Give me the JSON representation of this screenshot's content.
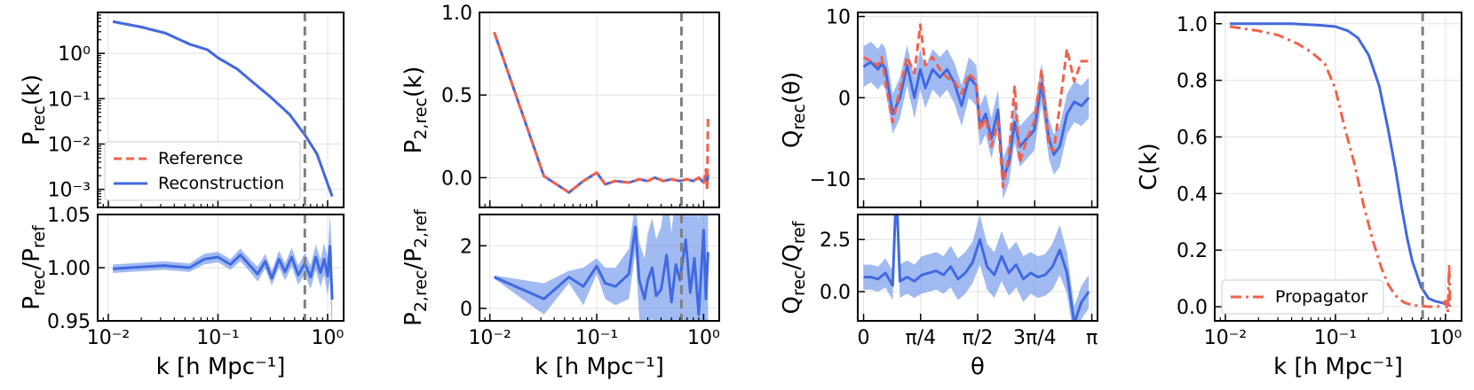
{
  "colors": {
    "reference": "#f0624b",
    "reconstruction": "#4169e1",
    "band": "#6e97eb",
    "vline": "#808080",
    "grid": "#e2e2e2"
  },
  "chart_data": [
    {
      "id": "p_main",
      "type": "line",
      "xscale": "log",
      "yscale": "log",
      "xlim": [
        0.008,
        1.4
      ],
      "ylim": [
        0.0004,
        8
      ],
      "xticks": [
        0.01,
        0.1,
        1
      ],
      "xtick_labels": [
        "",
        "",
        ""
      ],
      "yticks": [
        0.001,
        0.01,
        0.1,
        1
      ],
      "ytick_labels": [
        "10⁻³",
        "10⁻²",
        "10⁻¹",
        "10⁰"
      ],
      "ylabel": "P_rec(k)",
      "vline": 0.62,
      "grid": true,
      "legend": "lower-left",
      "series": [
        {
          "name": "Reference",
          "style": "dashed",
          "color": "reference",
          "x": [
            0.011,
            0.02,
            0.033,
            0.055,
            0.08,
            0.1,
            0.15,
            0.2,
            0.3,
            0.45,
            0.62,
            0.8,
            1.1
          ],
          "y": [
            5.0,
            3.8,
            2.8,
            1.6,
            1.2,
            0.8,
            0.45,
            0.25,
            0.11,
            0.045,
            0.016,
            0.006,
            0.0007
          ]
        },
        {
          "name": "Reconstruction",
          "style": "solid",
          "color": "reconstruction",
          "x": [
            0.011,
            0.02,
            0.033,
            0.055,
            0.08,
            0.1,
            0.15,
            0.2,
            0.3,
            0.45,
            0.62,
            0.8,
            1.1
          ],
          "y": [
            5.0,
            3.8,
            2.8,
            1.6,
            1.2,
            0.8,
            0.45,
            0.25,
            0.11,
            0.045,
            0.016,
            0.006,
            0.0007
          ]
        }
      ]
    },
    {
      "id": "p_ratio",
      "type": "line",
      "xscale": "log",
      "yscale": "linear",
      "xlim": [
        0.008,
        1.4
      ],
      "ylim": [
        0.95,
        1.05
      ],
      "xticks": [
        0.01,
        0.1,
        1
      ],
      "xtick_labels": [
        "10⁻²",
        "10⁻¹",
        "10⁰"
      ],
      "yticks": [
        0.95,
        1.0,
        1.05
      ],
      "ytick_labels": [
        "0.95",
        "1.00",
        "1.05"
      ],
      "ylabel": "P_rec/P_ref",
      "xlabel": "k [h Mpc⁻¹]",
      "vline": 0.62,
      "grid": true,
      "series": [
        {
          "name": "Reconstruction",
          "style": "band",
          "color": "reconstruction",
          "x": [
            0.011,
            0.032,
            0.055,
            0.075,
            0.1,
            0.13,
            0.16,
            0.2,
            0.23,
            0.27,
            0.31,
            0.36,
            0.41,
            0.47,
            0.54,
            0.62,
            0.7,
            0.78,
            0.86,
            0.93,
            1.0,
            1.05,
            1.1
          ],
          "y": [
            0.999,
            1.002,
            1.0,
            1.008,
            1.01,
            1.003,
            1.012,
            1.001,
            0.994,
            1.006,
            0.99,
            1.008,
            0.996,
            1.01,
            0.993,
            1.004,
            0.991,
            1.01,
            0.995,
            1.008,
            0.992,
            1.02,
            0.97
          ],
          "err": [
            0.004,
            0.004,
            0.004,
            0.005,
            0.005,
            0.005,
            0.006,
            0.006,
            0.007,
            0.007,
            0.007,
            0.008,
            0.008,
            0.009,
            0.009,
            0.01,
            0.011,
            0.012,
            0.013,
            0.015,
            0.018,
            0.03,
            0.04
          ]
        }
      ]
    },
    {
      "id": "p2_main",
      "type": "line",
      "xscale": "log",
      "yscale": "linear",
      "xlim": [
        0.008,
        1.4
      ],
      "ylim": [
        -0.18,
        1.0
      ],
      "xticks": [
        0.01,
        0.1,
        1
      ],
      "xtick_labels": [
        "",
        "",
        ""
      ],
      "yticks": [
        0.0,
        0.5,
        1.0
      ],
      "ytick_labels": [
        "0.0",
        "0.5",
        "1.0"
      ],
      "ylabel": "P_2,rec(k)",
      "vline": 0.62,
      "grid": true,
      "series": [
        {
          "name": "Reconstruction",
          "style": "solid",
          "color": "reconstruction",
          "x": [
            0.011,
            0.032,
            0.055,
            0.075,
            0.1,
            0.12,
            0.15,
            0.2,
            0.25,
            0.3,
            0.35,
            0.42,
            0.5,
            0.6,
            0.7,
            0.8,
            0.9,
            1.0,
            1.05,
            1.08,
            1.1
          ],
          "y": [
            0.88,
            0.01,
            -0.09,
            -0.02,
            0.03,
            -0.04,
            -0.02,
            -0.03,
            -0.01,
            -0.02,
            0.0,
            -0.02,
            -0.01,
            -0.02,
            -0.01,
            -0.02,
            0.0,
            -0.03,
            0.01,
            -0.04,
            0.02
          ]
        },
        {
          "name": "Reference",
          "style": "dashed",
          "color": "reference",
          "x": [
            0.011,
            0.032,
            0.055,
            0.075,
            0.1,
            0.12,
            0.15,
            0.2,
            0.25,
            0.3,
            0.35,
            0.42,
            0.5,
            0.6,
            0.7,
            0.8,
            0.9,
            1.0,
            1.05,
            1.08,
            1.1
          ],
          "y": [
            0.88,
            0.01,
            -0.09,
            -0.02,
            0.03,
            -0.04,
            -0.02,
            -0.03,
            -0.01,
            -0.02,
            0.0,
            -0.02,
            -0.01,
            -0.02,
            -0.01,
            -0.02,
            0.0,
            -0.03,
            0.05,
            -0.08,
            0.38
          ]
        }
      ]
    },
    {
      "id": "p2_ratio",
      "type": "line",
      "xscale": "log",
      "yscale": "linear",
      "xlim": [
        0.008,
        1.4
      ],
      "ylim": [
        -0.4,
        3.0
      ],
      "xticks": [
        0.01,
        0.1,
        1
      ],
      "xtick_labels": [
        "10⁻²",
        "10⁻¹",
        "10⁰"
      ],
      "yticks": [
        0,
        2
      ],
      "ytick_labels": [
        "0",
        "2"
      ],
      "ylabel": "P_2,rec/P_2,ref",
      "xlabel": "k [h Mpc⁻¹]",
      "vline": 0.62,
      "grid": true,
      "series": [
        {
          "name": "Reconstruction",
          "style": "band",
          "color": "reconstruction",
          "x": [
            0.011,
            0.032,
            0.055,
            0.075,
            0.1,
            0.12,
            0.15,
            0.2,
            0.23,
            0.25,
            0.28,
            0.3,
            0.33,
            0.36,
            0.4,
            0.45,
            0.5,
            0.55,
            0.6,
            0.68,
            0.75,
            0.82,
            0.9,
            1.0,
            1.05,
            1.1
          ],
          "y": [
            1.0,
            0.3,
            1.0,
            0.7,
            1.35,
            0.8,
            0.7,
            1.1,
            2.6,
            0.9,
            0.3,
            0.9,
            1.3,
            0.4,
            0.6,
            1.7,
            0.2,
            1.4,
            0.9,
            2.2,
            0.5,
            1.6,
            -0.2,
            2.5,
            0.3,
            1.8
          ],
          "err": [
            0.05,
            0.5,
            0.2,
            0.6,
            0.25,
            0.5,
            0.6,
            0.8,
            0.8,
            1.2,
            1.3,
            1.5,
            1.6,
            1.8,
            2.0,
            2.2,
            2.2,
            2.4,
            2.5,
            2.6,
            2.7,
            2.8,
            3.0,
            3.0,
            3.0,
            3.0
          ]
        }
      ]
    },
    {
      "id": "q_main",
      "type": "line",
      "xscale": "linear",
      "yscale": "linear",
      "xlim": [
        -0.08,
        3.22
      ],
      "ylim": [
        -13.5,
        10.5
      ],
      "xticks": [
        0,
        0.7854,
        1.5708,
        2.3562,
        3.1416
      ],
      "xtick_labels": [
        "",
        "",
        "",
        "",
        ""
      ],
      "yticks": [
        -10,
        0,
        10
      ],
      "ytick_labels": [
        "−10",
        "0",
        "10"
      ],
      "ylabel": "Q_rec(θ)",
      "grid": true,
      "series": [
        {
          "name": "Reconstruction",
          "style": "band",
          "color": "reconstruction",
          "x": [
            0.0,
            0.1,
            0.2,
            0.25,
            0.3,
            0.4,
            0.5,
            0.6,
            0.7,
            0.78,
            0.85,
            0.95,
            1.05,
            1.15,
            1.25,
            1.35,
            1.45,
            1.55,
            1.6,
            1.68,
            1.76,
            1.85,
            1.92,
            2.0,
            2.08,
            2.15,
            2.25,
            2.35,
            2.45,
            2.55,
            2.62,
            2.7,
            2.8,
            2.9,
            3.0,
            3.1
          ],
          "y": [
            3.8,
            4.4,
            3.5,
            4.2,
            3.6,
            -2.0,
            0.0,
            4.0,
            0.0,
            3.5,
            1.2,
            3.5,
            2.5,
            3.5,
            1.8,
            -1.0,
            2.5,
            1.5,
            -3.5,
            -2.0,
            -5.0,
            -1.5,
            -10.0,
            -8.0,
            -3.0,
            -6.0,
            -5.0,
            -4.0,
            1.8,
            -5.0,
            -7.0,
            -6.0,
            -2.0,
            -0.5,
            -1.0,
            0.0
          ],
          "err": [
            2.5,
            2.5,
            2.5,
            2.5,
            2.5,
            2.5,
            2.5,
            2.5,
            2.5,
            2.5,
            2.5,
            2.5,
            2.5,
            2.5,
            2.5,
            2.5,
            2.5,
            2.5,
            2.5,
            2.5,
            2.5,
            2.5,
            2.5,
            2.5,
            2.5,
            2.5,
            2.5,
            2.5,
            2.5,
            2.5,
            2.5,
            2.5,
            2.5,
            2.5,
            2.5,
            2.5
          ]
        },
        {
          "name": "Reference",
          "style": "dashed",
          "color": "reference",
          "x": [
            0.0,
            0.1,
            0.2,
            0.25,
            0.3,
            0.4,
            0.5,
            0.6,
            0.7,
            0.78,
            0.85,
            0.95,
            1.05,
            1.15,
            1.25,
            1.35,
            1.45,
            1.55,
            1.6,
            1.68,
            1.76,
            1.85,
            1.92,
            2.0,
            2.08,
            2.15,
            2.25,
            2.35,
            2.45,
            2.55,
            2.62,
            2.7,
            2.8,
            2.9,
            3.0,
            3.1
          ],
          "y": [
            5.0,
            4.5,
            4.0,
            5.0,
            2.0,
            -3.0,
            1.0,
            5.0,
            3.0,
            9.0,
            4.0,
            5.0,
            3.5,
            2.5,
            2.0,
            0.5,
            3.0,
            2.0,
            -4.0,
            -2.5,
            -6.0,
            -3.0,
            -11.0,
            -7.0,
            1.5,
            -8.0,
            -5.0,
            -3.0,
            3.5,
            -6.0,
            -6.5,
            -1.0,
            6.0,
            2.0,
            4.5,
            4.5
          ]
        }
      ]
    },
    {
      "id": "q_ratio",
      "type": "line",
      "xscale": "linear",
      "yscale": "linear",
      "xlim": [
        -0.08,
        3.22
      ],
      "ylim": [
        -1.4,
        3.7
      ],
      "xticks": [
        0,
        0.7854,
        1.5708,
        2.3562,
        3.1416
      ],
      "xtick_labels": [
        "0",
        "π/4",
        "π/2",
        "3π/4",
        "π"
      ],
      "yticks": [
        0.0,
        2.5
      ],
      "ytick_labels": [
        "0.0",
        "2.5"
      ],
      "ylabel": "Q_rec/Q_ref",
      "xlabel": "θ",
      "grid": true,
      "series": [
        {
          "name": "Reconstruction",
          "style": "band",
          "color": "reconstruction",
          "x": [
            0.0,
            0.1,
            0.2,
            0.3,
            0.4,
            0.45,
            0.5,
            0.6,
            0.7,
            0.8,
            0.9,
            1.0,
            1.1,
            1.2,
            1.3,
            1.4,
            1.5,
            1.6,
            1.7,
            1.8,
            1.9,
            2.0,
            2.1,
            2.2,
            2.3,
            2.4,
            2.5,
            2.6,
            2.7,
            2.8,
            2.9,
            3.0,
            3.1
          ],
          "y": [
            0.7,
            0.7,
            0.6,
            0.9,
            0.3,
            5.0,
            0.5,
            0.7,
            0.5,
            0.8,
            0.9,
            1.0,
            0.8,
            1.2,
            0.6,
            0.9,
            1.4,
            2.5,
            1.2,
            0.8,
            1.7,
            0.9,
            1.3,
            0.6,
            0.9,
            0.7,
            0.8,
            1.2,
            2.0,
            0.9,
            -1.5,
            -0.5,
            0.0
          ],
          "err": [
            0.6,
            0.6,
            0.6,
            0.7,
            0.7,
            0.8,
            0.8,
            0.8,
            0.8,
            0.9,
            0.9,
            0.9,
            0.9,
            1.0,
            1.0,
            1.0,
            1.0,
            1.2,
            1.1,
            1.1,
            1.2,
            1.1,
            1.1,
            1.1,
            1.0,
            1.0,
            1.0,
            1.1,
            1.2,
            1.0,
            0.8,
            0.8,
            0.8
          ]
        }
      ]
    },
    {
      "id": "c_k",
      "type": "line",
      "xscale": "log",
      "yscale": "linear",
      "xlim": [
        0.008,
        1.4
      ],
      "ylim": [
        -0.05,
        1.04
      ],
      "xticks": [
        0.01,
        0.1,
        1
      ],
      "xtick_labels": [
        "10⁻²",
        "10⁻¹",
        "10⁰"
      ],
      "yticks": [
        0.0,
        0.2,
        0.4,
        0.6,
        0.8,
        1.0
      ],
      "ytick_labels": [
        "0.0",
        "0.2",
        "0.4",
        "0.6",
        "0.8",
        "1.0"
      ],
      "ylabel": "C(k)",
      "xlabel": "k [h Mpc⁻¹]",
      "vline": 0.62,
      "grid": true,
      "legend": "lower-left",
      "series": [
        {
          "name": "",
          "style": "solid",
          "color": "reconstruction",
          "x": [
            0.011,
            0.02,
            0.04,
            0.07,
            0.1,
            0.13,
            0.16,
            0.2,
            0.25,
            0.3,
            0.35,
            0.4,
            0.45,
            0.5,
            0.6,
            0.7,
            0.8,
            0.9,
            1.0,
            1.1
          ],
          "y": [
            1.0,
            1.0,
            1.0,
            0.995,
            0.99,
            0.975,
            0.95,
            0.89,
            0.78,
            0.63,
            0.49,
            0.35,
            0.24,
            0.16,
            0.07,
            0.03,
            0.02,
            0.015,
            0.01,
            0.005
          ]
        },
        {
          "name": "Propagator",
          "style": "dashdot",
          "color": "reference",
          "x": [
            0.011,
            0.02,
            0.03,
            0.045,
            0.06,
            0.08,
            0.1,
            0.12,
            0.15,
            0.18,
            0.22,
            0.26,
            0.3,
            0.35,
            0.42,
            0.5,
            0.6,
            0.7,
            0.85,
            1.0,
            1.05,
            1.08,
            1.1
          ],
          "y": [
            0.99,
            0.975,
            0.96,
            0.93,
            0.9,
            0.86,
            0.77,
            0.64,
            0.5,
            0.36,
            0.23,
            0.14,
            0.08,
            0.04,
            0.015,
            0.005,
            0.003,
            0.0,
            0.0,
            0.02,
            -0.02,
            0.15,
            0.0
          ]
        }
      ]
    }
  ]
}
